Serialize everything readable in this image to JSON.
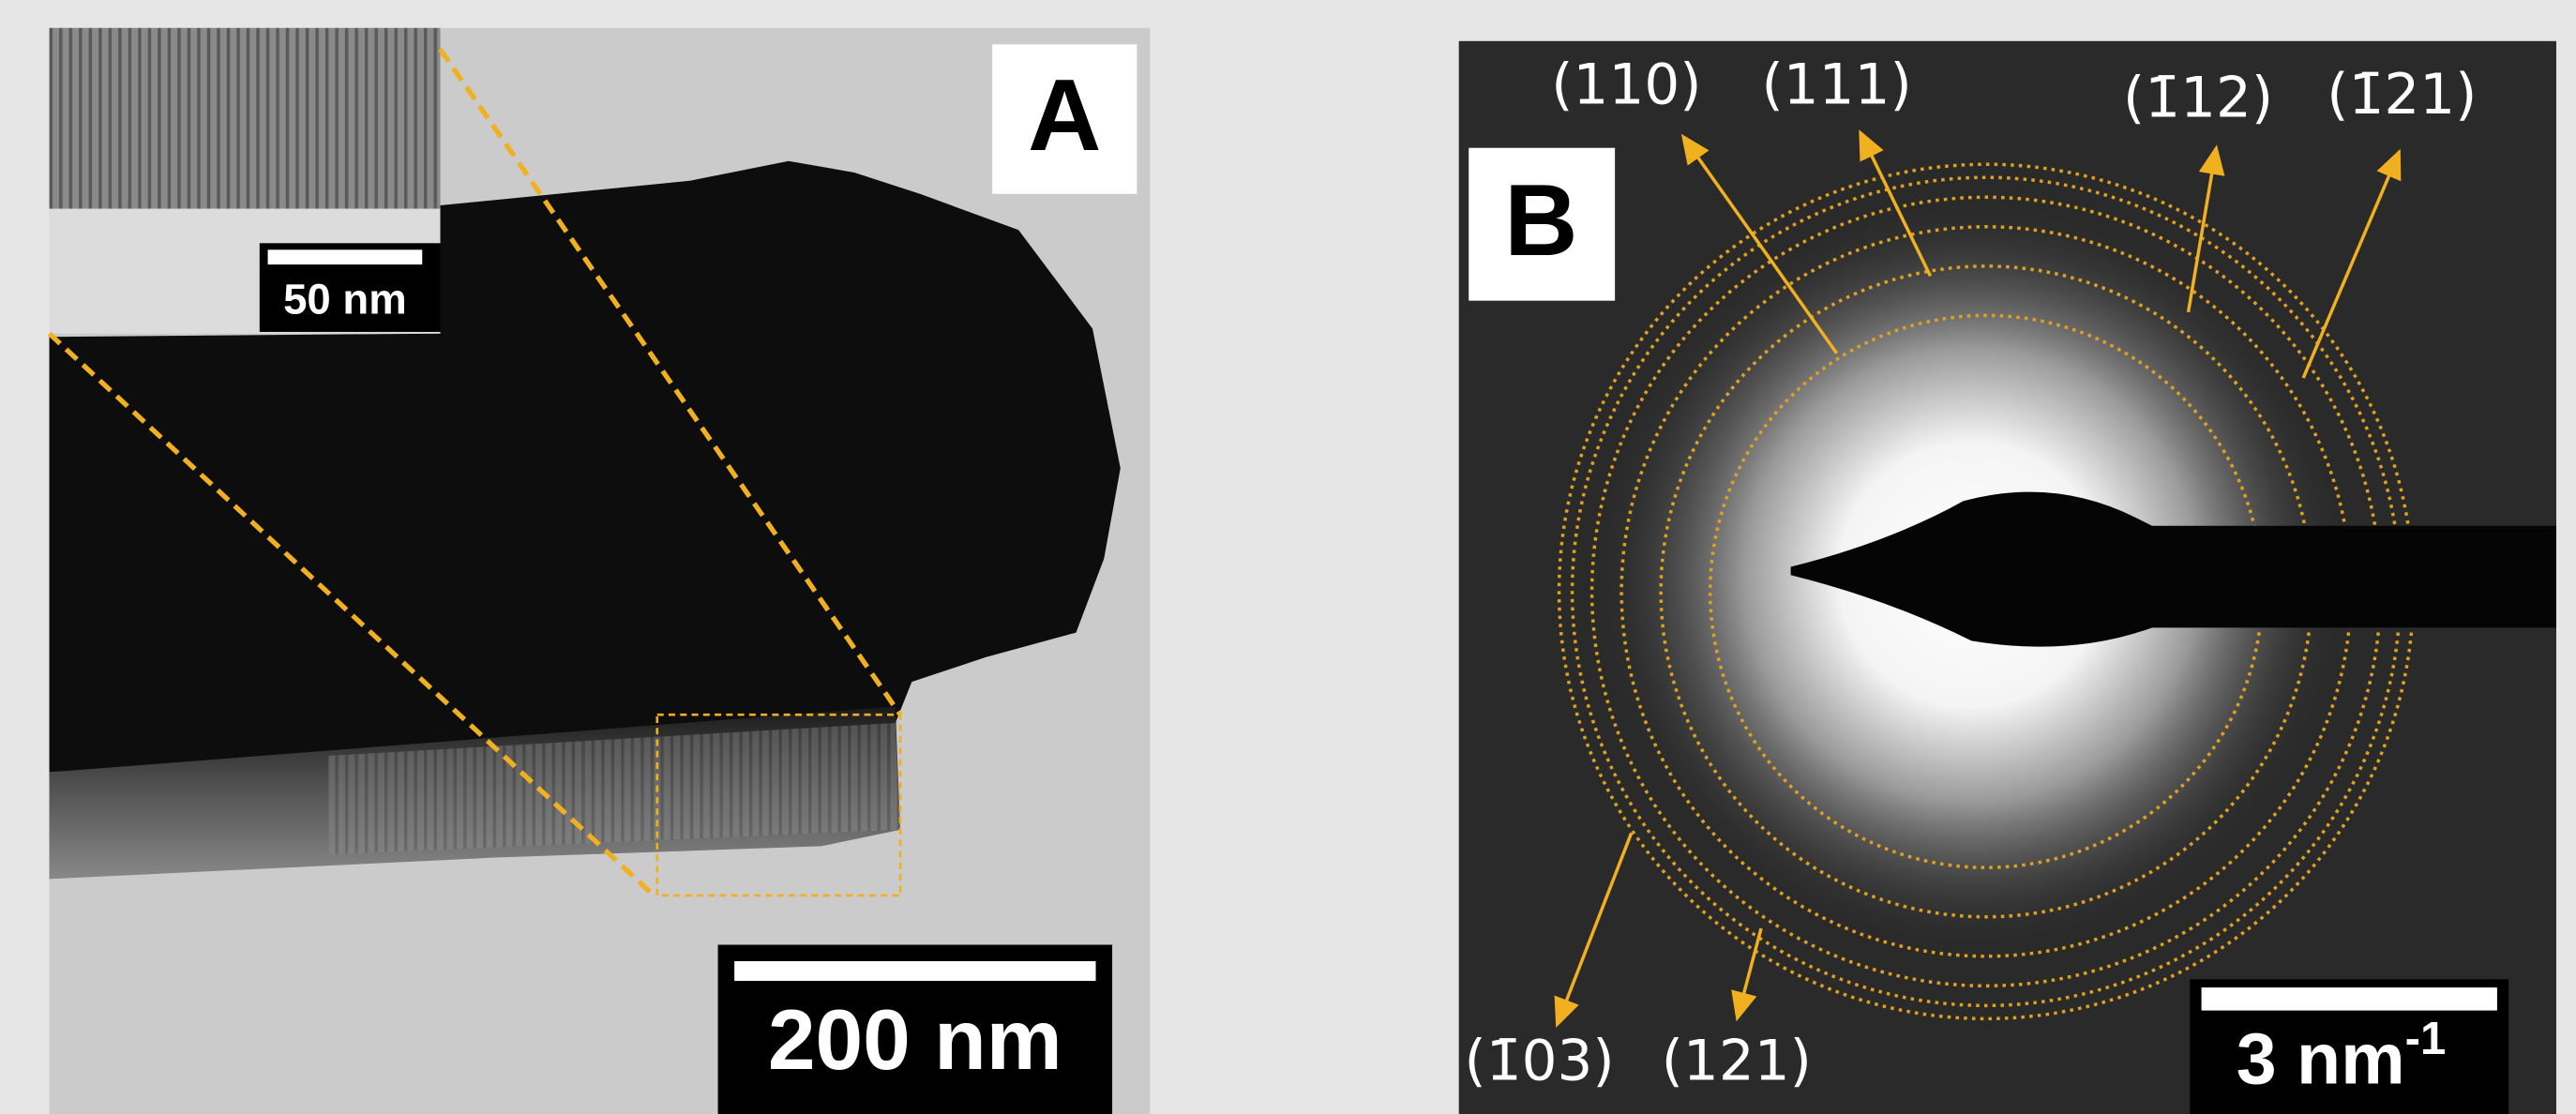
{
  "panels": [
    {
      "label": "A",
      "scale_bar": "200 nm",
      "inset_scale_bar": "50 nm"
    },
    {
      "label": "B",
      "scale_bar": {
        "text": "3 nm",
        "superscript": "-1"
      },
      "reflections": [
        "(110)",
        "(111)",
        "(1̄12)",
        "(1̄21)",
        "(1̄03)",
        "(121)"
      ]
    }
  ]
}
